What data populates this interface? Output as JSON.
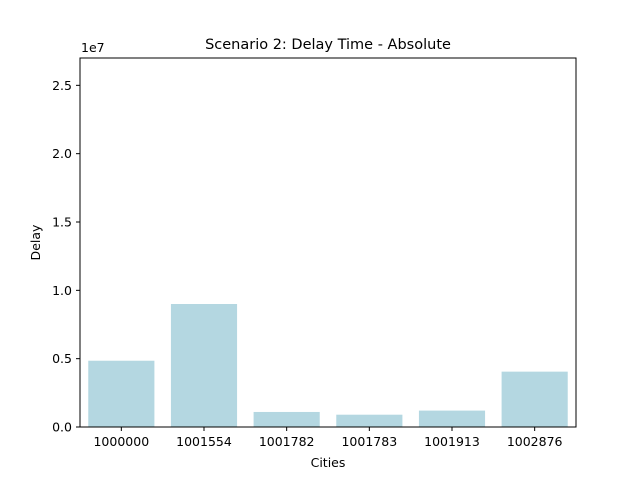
{
  "chart_data": {
    "type": "bar",
    "title": "Scenario 2: Delay Time - Absolute",
    "xlabel": "Cities",
    "ylabel": "Delay",
    "y_offset_label": "1e7",
    "categories": [
      "1000000",
      "1001554",
      "1001782",
      "1001783",
      "1001913",
      "1002876"
    ],
    "values": [
      4850000,
      9000000,
      1100000,
      900000,
      1200000,
      4050000
    ],
    "ylim": [
      0,
      27000000
    ],
    "y_ticks": [
      0,
      5000000,
      10000000,
      15000000,
      20000000,
      25000000
    ],
    "y_tick_labels": [
      "0.0",
      "0.5",
      "1.0",
      "1.5",
      "2.0",
      "2.5"
    ],
    "bar_color": "#b4d7e1",
    "grid": false,
    "legend": "none"
  }
}
